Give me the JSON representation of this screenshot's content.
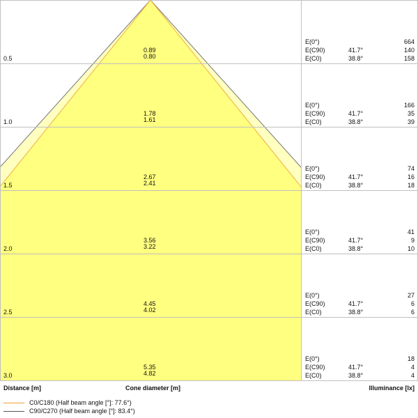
{
  "rows": [
    {
      "distance": "0.5",
      "d_c90": "0.89",
      "d_c0": "0.80",
      "e0": "664",
      "e_c90": "140",
      "e_c0": "158"
    },
    {
      "distance": "1.0",
      "d_c90": "1.78",
      "d_c0": "1.61",
      "e0": "166",
      "e_c90": "35",
      "e_c0": "39"
    },
    {
      "distance": "1.5",
      "d_c90": "2.67",
      "d_c0": "2.41",
      "e0": "74",
      "e_c90": "16",
      "e_c0": "18"
    },
    {
      "distance": "2.0",
      "d_c90": "3.56",
      "d_c0": "3.22",
      "e0": "41",
      "e_c90": "9",
      "e_c0": "10"
    },
    {
      "distance": "2.5",
      "d_c90": "4.45",
      "d_c0": "4.02",
      "e0": "27",
      "e_c90": "6",
      "e_c0": "6"
    },
    {
      "distance": "3.0",
      "d_c90": "5.35",
      "d_c0": "4.82",
      "e0": "18",
      "e_c90": "4",
      "e_c0": "4"
    }
  ],
  "labels": {
    "e0": "E(0°)",
    "e_c90": "E(C90)",
    "e_c0": "E(C0)",
    "angle_c90": "41.7°",
    "angle_c0": "38.8°"
  },
  "footer": {
    "distance": "Distance [m]",
    "cone": "Cone diameter [m]",
    "illuminance": "Illuminance [lx]"
  },
  "legend": [
    {
      "label": "C0/C180 (Half beam angle [°]: 77.6°)",
      "color": "#f0a030"
    },
    {
      "label": "C90/C270 (Half beam angle [°]: 83.4°)",
      "color": "#555555"
    }
  ],
  "colors": {
    "cone_inner": "#ffff80",
    "cone_outer": "#ffffc0",
    "grid": "#c0c0c0"
  }
}
